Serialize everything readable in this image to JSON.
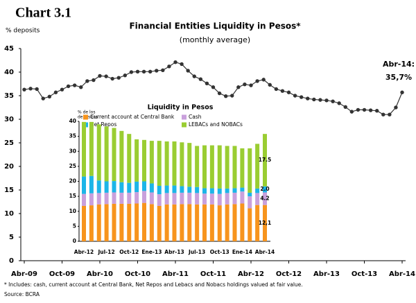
{
  "header": "Chart 3.1",
  "footnote": "* Includes: cash, current account at Central Bank, Net Repos and Lebacs and Nobacs holdings valued at fair value.",
  "source": "Source: BCRA",
  "chart_data": [
    {
      "type": "line",
      "title": "Financial Entities Liquidity in Pesos*",
      "subtitle": "(monthly average)",
      "ylabel": "% deposits",
      "annotations": [
        "Abr-14:",
        "35,7%"
      ],
      "categories": [
        "Abr-09",
        null,
        null,
        null,
        null,
        null,
        "Oct-09",
        null,
        null,
        null,
        null,
        null,
        "Abr-10",
        null,
        null,
        null,
        null,
        null,
        "Oct-10",
        null,
        null,
        null,
        null,
        null,
        "Abr-11",
        null,
        null,
        null,
        null,
        null,
        "Oct-11",
        null,
        null,
        null,
        null,
        null,
        "Abr-12",
        null,
        null,
        null,
        null,
        null,
        "Oct-12",
        null,
        null,
        null,
        null,
        null,
        "Abr-13",
        null,
        null,
        null,
        null,
        null,
        "Oct-13",
        null,
        null,
        null,
        null,
        null,
        "Abr-14"
      ],
      "values": [
        36.3,
        36.5,
        36.4,
        34.4,
        34.8,
        35.7,
        36.3,
        37.0,
        37.2,
        36.8,
        38.1,
        38.3,
        39.2,
        39.1,
        38.6,
        38.8,
        39.3,
        40.0,
        40.1,
        40.1,
        40.1,
        40.3,
        40.4,
        41.2,
        42.1,
        41.7,
        40.3,
        39.1,
        38.5,
        37.6,
        36.8,
        35.5,
        34.9,
        35.0,
        36.8,
        37.4,
        37.2,
        38.1,
        38.4,
        37.3,
        36.4,
        36.0,
        35.7,
        35.0,
        34.7,
        34.4,
        34.2,
        34.1,
        34.0,
        33.8,
        33.4,
        32.6,
        31.6,
        32.0,
        32.0,
        31.9,
        31.8,
        31.0,
        31.0,
        32.5,
        35.7
      ],
      "color": "#333333",
      "ylim": [
        0,
        45
      ],
      "yticks": [
        0,
        5,
        10,
        15,
        20,
        25,
        30,
        35,
        40,
        45
      ]
    },
    {
      "type": "bar",
      "stacked": true,
      "title": "Liquidity in Pesos",
      "ylabel": [
        "% de los",
        "depósitos"
      ],
      "categories": [
        "Abr-12",
        null,
        null,
        "Jul-12",
        null,
        null,
        "Oct-12",
        null,
        null,
        "Ene-13",
        null,
        null,
        "Abr-13",
        null,
        null,
        "Jul-13",
        null,
        null,
        "Oct-13",
        null,
        null,
        "Ene-14",
        null,
        null,
        "Abr-14"
      ],
      "series": [
        {
          "name": "Current account at Central Bank",
          "color": "#f7941d",
          "values": [
            11.8,
            12.0,
            12.3,
            12.4,
            12.5,
            12.5,
            12.5,
            12.6,
            12.8,
            12.4,
            11.8,
            12.3,
            12.3,
            12.4,
            12.4,
            12.3,
            12.3,
            12.3,
            12.0,
            12.3,
            12.4,
            12.6,
            11.0,
            12.1,
            12.1
          ],
          "value_labels": [
            null,
            null,
            null,
            null,
            null,
            null,
            null,
            null,
            null,
            null,
            null,
            null,
            null,
            null,
            null,
            null,
            null,
            null,
            null,
            null,
            null,
            null,
            null,
            null,
            "12,1"
          ]
        },
        {
          "name": "Cash",
          "color": "#c9a0dc",
          "values": [
            4.0,
            4.0,
            3.8,
            3.8,
            3.8,
            3.7,
            3.7,
            3.8,
            4.0,
            3.9,
            3.9,
            3.8,
            3.8,
            3.8,
            3.8,
            3.8,
            3.6,
            3.6,
            3.8,
            3.8,
            3.8,
            4.0,
            4.0,
            4.0,
            4.2
          ],
          "value_labels": [
            null,
            null,
            null,
            null,
            null,
            null,
            null,
            null,
            null,
            null,
            null,
            null,
            null,
            null,
            null,
            null,
            null,
            null,
            null,
            null,
            null,
            null,
            null,
            null,
            "4.2"
          ]
        },
        {
          "name": "Net Repos",
          "color": "#1cb5e8",
          "values": [
            5.8,
            5.8,
            4.2,
            3.8,
            3.8,
            3.5,
            3.3,
            3.5,
            3.2,
            3.0,
            2.8,
            2.5,
            2.5,
            2.2,
            2.0,
            2.0,
            1.8,
            1.8,
            1.8,
            1.5,
            1.5,
            1.3,
            1.2,
            1.5,
            2.0
          ],
          "value_labels": [
            null,
            null,
            null,
            null,
            null,
            null,
            null,
            null,
            null,
            null,
            null,
            null,
            null,
            null,
            null,
            null,
            null,
            null,
            null,
            null,
            null,
            null,
            null,
            null,
            "2.0"
          ]
        },
        {
          "name": "LEBACs and NOBACs",
          "color": "#9acd32",
          "values": [
            18.2,
            18.0,
            18.7,
            18.3,
            17.7,
            17.1,
            16.3,
            14.1,
            13.8,
            14.2,
            15.0,
            14.7,
            14.7,
            14.6,
            14.6,
            13.7,
            14.3,
            14.3,
            14.4,
            14.2,
            14.1,
            13.1,
            14.8,
            14.9,
            17.5
          ],
          "value_labels": [
            null,
            null,
            null,
            null,
            null,
            null,
            null,
            null,
            null,
            null,
            null,
            null,
            null,
            null,
            null,
            null,
            null,
            null,
            null,
            null,
            null,
            null,
            null,
            null,
            "17.5"
          ]
        }
      ],
      "ylim": [
        0,
        40
      ],
      "yticks": [
        0,
        5,
        10,
        15,
        20,
        25,
        30,
        35,
        40
      ]
    }
  ]
}
